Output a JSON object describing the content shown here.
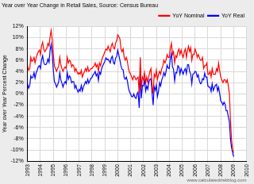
{
  "chart_data": {
    "type": "line",
    "title": "Year over Year Change in Retail Sales, Source: Census Bureau",
    "y_label": "Year over Year Percent Change",
    "annotations": [
      "www.calculatedriskblog.com"
    ],
    "legend": "top-right",
    "grid": true,
    "xlim": [
      1993,
      2010
    ],
    "xticks": [
      1993,
      1994,
      1995,
      1996,
      1997,
      1998,
      1999,
      2000,
      2001,
      2002,
      2003,
      2004,
      2005,
      2006,
      2007,
      2008,
      2009,
      2010
    ],
    "ylim": [
      -12,
      12
    ],
    "yticks": [
      {
        "value": -12,
        "label": "-12%"
      },
      {
        "value": -10,
        "label": "-10%"
      },
      {
        "value": -8,
        "label": "-8%"
      },
      {
        "value": -6,
        "label": "-6%"
      },
      {
        "value": -4,
        "label": "-4%"
      },
      {
        "value": -2,
        "label": "-2%"
      },
      {
        "value": 0,
        "label": "0%"
      },
      {
        "value": 2,
        "label": "2%"
      },
      {
        "value": 4,
        "label": "4%"
      },
      {
        "value": 6,
        "label": "6%"
      },
      {
        "value": 8,
        "label": "8%"
      },
      {
        "value": 10,
        "label": "10%"
      },
      {
        "value": 12,
        "label": "12%"
      }
    ],
    "x": [
      1993.0,
      1993.08,
      1993.17,
      1993.25,
      1993.33,
      1993.42,
      1993.5,
      1993.58,
      1993.67,
      1993.75,
      1993.83,
      1993.92,
      1994.0,
      1994.08,
      1994.17,
      1994.25,
      1994.33,
      1994.42,
      1994.5,
      1994.58,
      1994.67,
      1994.75,
      1994.83,
      1994.92,
      1995.0,
      1995.08,
      1995.17,
      1995.25,
      1995.33,
      1995.42,
      1995.5,
      1995.58,
      1995.67,
      1995.75,
      1995.83,
      1995.92,
      1996.0,
      1996.08,
      1996.17,
      1996.25,
      1996.33,
      1996.42,
      1996.5,
      1996.58,
      1996.67,
      1996.75,
      1996.83,
      1996.92,
      1997.0,
      1997.08,
      1997.17,
      1997.25,
      1997.33,
      1997.42,
      1997.5,
      1997.58,
      1997.67,
      1997.75,
      1997.83,
      1997.92,
      1998.0,
      1998.08,
      1998.17,
      1998.25,
      1998.33,
      1998.42,
      1998.5,
      1998.58,
      1998.67,
      1998.75,
      1998.83,
      1998.92,
      1999.0,
      1999.08,
      1999.17,
      1999.25,
      1999.33,
      1999.42,
      1999.5,
      1999.58,
      1999.67,
      1999.75,
      1999.83,
      1999.92,
      2000.0,
      2000.08,
      2000.17,
      2000.25,
      2000.33,
      2000.42,
      2000.5,
      2000.58,
      2000.67,
      2000.75,
      2000.83,
      2000.92,
      2001.0,
      2001.08,
      2001.17,
      2001.25,
      2001.33,
      2001.42,
      2001.5,
      2001.58,
      2001.67,
      2001.75,
      2001.83,
      2001.92,
      2002.0,
      2002.08,
      2002.17,
      2002.25,
      2002.33,
      2002.42,
      2002.5,
      2002.58,
      2002.67,
      2002.75,
      2002.83,
      2002.92,
      2003.0,
      2003.08,
      2003.17,
      2003.25,
      2003.33,
      2003.42,
      2003.5,
      2003.58,
      2003.67,
      2003.75,
      2003.83,
      2003.92,
      2004.0,
      2004.08,
      2004.17,
      2004.25,
      2004.33,
      2004.42,
      2004.5,
      2004.58,
      2004.67,
      2004.75,
      2004.83,
      2004.92,
      2005.0,
      2005.08,
      2005.17,
      2005.25,
      2005.33,
      2005.42,
      2005.5,
      2005.58,
      2005.67,
      2005.75,
      2005.83,
      2005.92,
      2006.0,
      2006.08,
      2006.17,
      2006.25,
      2006.33,
      2006.42,
      2006.5,
      2006.58,
      2006.67,
      2006.75,
      2006.83,
      2006.92,
      2007.0,
      2007.08,
      2007.17,
      2007.25,
      2007.33,
      2007.42,
      2007.5,
      2007.58,
      2007.67,
      2007.75,
      2007.83,
      2007.92,
      2008.0,
      2008.08,
      2008.17,
      2008.25,
      2008.33,
      2008.42,
      2008.5,
      2008.58,
      2008.67,
      2008.75,
      2008.83,
      2008.92,
      2009.0
    ],
    "series": [
      {
        "name": "YoY Nominal",
        "color": "#ff0000",
        "values": [
          5.0,
          4.2,
          4.5,
          6.5,
          5.8,
          6.0,
          6.5,
          5.5,
          6.5,
          7.0,
          7.5,
          7.8,
          7.0,
          8.5,
          9.2,
          8.0,
          7.5,
          7.8,
          8.2,
          9.0,
          8.5,
          10.2,
          11.3,
          9.5,
          7.0,
          5.0,
          4.5,
          4.0,
          4.5,
          5.0,
          6.5,
          5.2,
          4.5,
          4.0,
          4.5,
          4.8,
          4.5,
          6.5,
          5.5,
          6.0,
          5.8,
          4.8,
          5.2,
          5.0,
          4.0,
          4.5,
          4.0,
          3.5,
          3.8,
          3.5,
          4.2,
          3.0,
          3.5,
          4.0,
          4.5,
          4.0,
          4.8,
          4.0,
          4.2,
          4.5,
          4.5,
          4.8,
          5.0,
          5.5,
          4.8,
          5.2,
          4.0,
          5.5,
          5.0,
          6.0,
          6.5,
          7.0,
          7.5,
          8.0,
          7.8,
          8.5,
          8.0,
          7.5,
          8.5,
          9.0,
          8.2,
          8.0,
          9.0,
          9.5,
          10.5,
          10.2,
          9.8,
          8.0,
          7.5,
          8.0,
          6.5,
          6.0,
          6.5,
          5.8,
          4.5,
          3.8,
          3.5,
          3.0,
          2.5,
          3.2,
          3.0,
          2.5,
          2.8,
          3.0,
          0.0,
          6.5,
          1.0,
          3.0,
          2.5,
          3.8,
          2.0,
          3.0,
          2.0,
          3.2,
          4.0,
          4.5,
          1.5,
          0.0,
          3.5,
          3.0,
          4.2,
          2.5,
          3.5,
          4.0,
          3.5,
          4.5,
          5.0,
          6.0,
          5.5,
          6.0,
          7.0,
          6.5,
          6.5,
          8.0,
          9.0,
          7.0,
          7.5,
          5.5,
          6.8,
          6.5,
          7.5,
          8.0,
          7.0,
          7.8,
          7.0,
          6.5,
          7.5,
          8.0,
          6.5,
          7.8,
          8.5,
          7.5,
          8.2,
          6.0,
          7.0,
          7.0,
          8.0,
          7.5,
          6.5,
          7.0,
          6.5,
          6.0,
          6.0,
          6.5,
          4.5,
          5.0,
          5.0,
          5.5,
          3.5,
          3.5,
          4.0,
          3.0,
          4.5,
          3.5,
          3.5,
          3.5,
          4.5,
          4.0,
          5.5,
          4.0,
          3.0,
          2.5,
          2.0,
          2.5,
          2.5,
          2.0,
          2.5,
          1.5,
          0.0,
          -4.5,
          -8.0,
          -10.0,
          -10.5
        ]
      },
      {
        "name": "YoY Real",
        "color": "#0000ff",
        "values": [
          1.8,
          1.0,
          1.5,
          3.2,
          2.8,
          3.0,
          3.8,
          2.8,
          3.8,
          4.2,
          4.8,
          5.0,
          4.5,
          6.0,
          6.8,
          5.6,
          5.2,
          5.2,
          5.5,
          6.2,
          5.6,
          7.8,
          8.8,
          7.0,
          4.2,
          2.2,
          1.8,
          1.2,
          1.6,
          2.2,
          3.8,
          2.5,
          1.9,
          1.2,
          1.8,
          2.2,
          1.8,
          3.8,
          2.6,
          3.2,
          2.9,
          2.0,
          2.2,
          2.2,
          1.0,
          1.5,
          0.8,
          0.3,
          0.8,
          0.5,
          1.5,
          0.5,
          1.2,
          1.7,
          2.2,
          1.8,
          2.6,
          1.9,
          2.3,
          2.8,
          2.9,
          3.4,
          3.6,
          4.0,
          3.2,
          3.6,
          2.4,
          3.9,
          3.5,
          4.5,
          5.0,
          5.4,
          5.8,
          6.4,
          6.1,
          6.2,
          5.9,
          5.5,
          6.4,
          6.7,
          5.5,
          5.3,
          6.3,
          6.7,
          7.8,
          7.0,
          6.0,
          5.0,
          4.4,
          4.3,
          2.9,
          2.6,
          3.0,
          2.3,
          1.1,
          0.3,
          0.0,
          -0.5,
          -0.5,
          0.0,
          -0.6,
          -0.8,
          0.0,
          0.3,
          -2.5,
          4.5,
          -0.8,
          1.5,
          1.4,
          2.6,
          0.5,
          1.4,
          0.8,
          2.1,
          2.6,
          2.7,
          0.0,
          -2.0,
          1.3,
          0.6,
          1.6,
          -0.5,
          0.5,
          2.0,
          1.4,
          2.5,
          3.0,
          3.8,
          3.2,
          4.0,
          5.1,
          4.6,
          4.5,
          6.2,
          7.2,
          4.8,
          4.4,
          2.3,
          3.8,
          3.7,
          5.0,
          4.8,
          3.5,
          4.5,
          4.0,
          3.5,
          4.2,
          4.5,
          3.6,
          5.2,
          5.2,
          4.0,
          3.5,
          1.8,
          3.5,
          3.6,
          4.0,
          3.9,
          3.0,
          3.4,
          2.4,
          1.8,
          1.9,
          2.7,
          2.5,
          3.7,
          3.0,
          3.0,
          1.4,
          1.2,
          1.2,
          0.4,
          1.8,
          0.6,
          1.1,
          1.5,
          1.7,
          0.5,
          1.2,
          0.0,
          -1.3,
          -1.5,
          -2.0,
          -1.5,
          -1.8,
          -3.0,
          -3.0,
          -4.0,
          -5.0,
          -8.0,
          -9.5,
          -10.5,
          -11.2
        ]
      }
    ]
  }
}
